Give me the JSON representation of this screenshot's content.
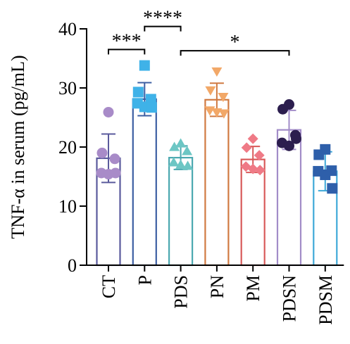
{
  "chart_data": {
    "type": "bar",
    "ylabel": "TNF-α in serum (pg/mL)",
    "ylim": [
      0,
      40
    ],
    "yticks": [
      "0",
      "10",
      "20",
      "30",
      "40"
    ],
    "grid": false,
    "categories": [
      "CT",
      "P",
      "PDS",
      "PN",
      "PM",
      "PDSN",
      "PDSM"
    ],
    "groups": [
      {
        "name": "CT",
        "mean": 18.1,
        "sd": 4.1,
        "color": "#5a5a9c",
        "marker": "circle",
        "marker_color": "#a88bc8",
        "points": [
          25.9,
          19.0,
          18.0,
          15.6,
          15.4,
          15.6
        ]
      },
      {
        "name": "P",
        "mean": 28.1,
        "sd": 2.8,
        "color": "#3d5fa3",
        "marker": "square",
        "marker_color": "#3fb2e8",
        "points": [
          33.8,
          29.3,
          28.1,
          27.4,
          26.8,
          26.7
        ]
      },
      {
        "name": "PDS",
        "mean": 18.2,
        "sd": 2.0,
        "color": "#4ba8b0",
        "marker": "triangle-up",
        "marker_color": "#6cc6c4",
        "points": [
          20.6,
          20.0,
          19.3,
          17.4,
          17.0,
          16.8
        ]
      },
      {
        "name": "PN",
        "mean": 28.0,
        "sd": 2.8,
        "color": "#d07a42",
        "marker": "triangle-down",
        "marker_color": "#f2a868",
        "points": [
          32.8,
          29.6,
          28.5,
          26.2,
          25.9,
          25.7
        ]
      },
      {
        "name": "PM",
        "mean": 17.9,
        "sd": 2.2,
        "color": "#d85a5a",
        "marker": "diamond",
        "marker_color": "#ef7a86",
        "points": [
          21.4,
          19.9,
          18.6,
          16.7,
          16.3,
          16.1
        ]
      },
      {
        "name": "PDSN",
        "mean": 22.9,
        "sd": 3.3,
        "color": "#a28cc8",
        "marker": "circle",
        "marker_color": "#2c1e4e",
        "points": [
          27.2,
          26.4,
          22.0,
          20.7,
          20.2,
          21.4
        ]
      },
      {
        "name": "PDSM",
        "mean": 15.9,
        "sd": 3.3,
        "color": "#3ea9d8",
        "marker": "square",
        "marker_color": "#2e5faa",
        "points": [
          19.6,
          18.7,
          16.0,
          15.9,
          15.3,
          13.0
        ]
      }
    ],
    "significance": [
      {
        "from": "CT",
        "to": "P",
        "label": "***"
      },
      {
        "from": "P",
        "to": "PDS",
        "label": "****"
      },
      {
        "from": "PDS",
        "to": "PDSN",
        "label": "*"
      }
    ]
  }
}
